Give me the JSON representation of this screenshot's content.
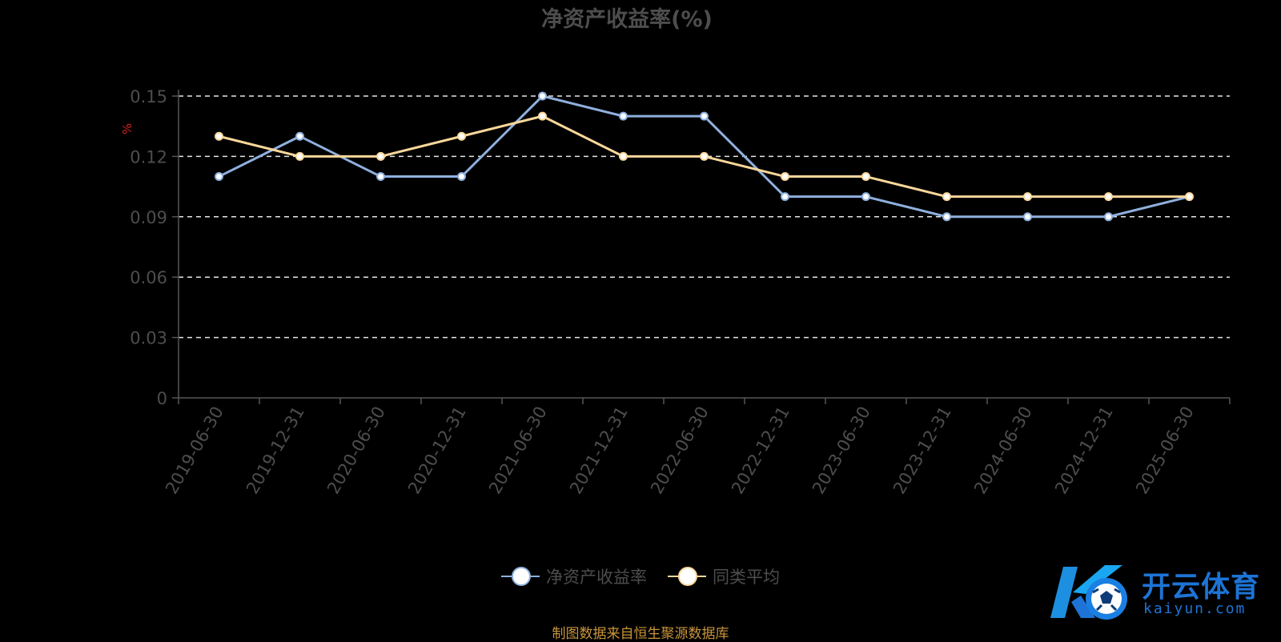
{
  "chart_data": {
    "type": "line",
    "title": "净资产收益率(%)",
    "ylabel": "%",
    "xlabel": "",
    "categories": [
      "2019-06-30",
      "2019-12-31",
      "2020-06-30",
      "2020-12-31",
      "2021-06-30",
      "2021-12-31",
      "2022-06-30",
      "2022-12-31",
      "2023-06-30",
      "2023-12-31",
      "2024-06-30",
      "2024-12-31",
      "2025-06-30"
    ],
    "ylim": [
      0,
      0.15
    ],
    "yticks": [
      "0",
      "0.03",
      "0.06",
      "0.09",
      "0.12",
      "0.15"
    ],
    "ytick_values": [
      0,
      0.03,
      0.06,
      0.09,
      0.12,
      0.15
    ],
    "grid": "horizontal-dashed",
    "legend_position": "bottom-center",
    "series": [
      {
        "name": "净资产收益率",
        "color": "#8fb0de",
        "values": [
          0.11,
          0.13,
          0.11,
          0.11,
          0.15,
          0.14,
          0.14,
          0.1,
          0.1,
          0.09,
          0.09,
          0.09,
          0.1
        ]
      },
      {
        "name": "同类平均",
        "color": "#f9d79a",
        "values": [
          0.13,
          0.12,
          0.12,
          0.13,
          0.14,
          0.12,
          0.12,
          0.11,
          0.11,
          0.1,
          0.1,
          0.1,
          0.1
        ]
      }
    ]
  },
  "footer": {
    "source": "制图数据来自恒生聚源数据库"
  },
  "watermark": {
    "brand_cn": "开云体育",
    "brand_en": "kaiyun.com"
  }
}
